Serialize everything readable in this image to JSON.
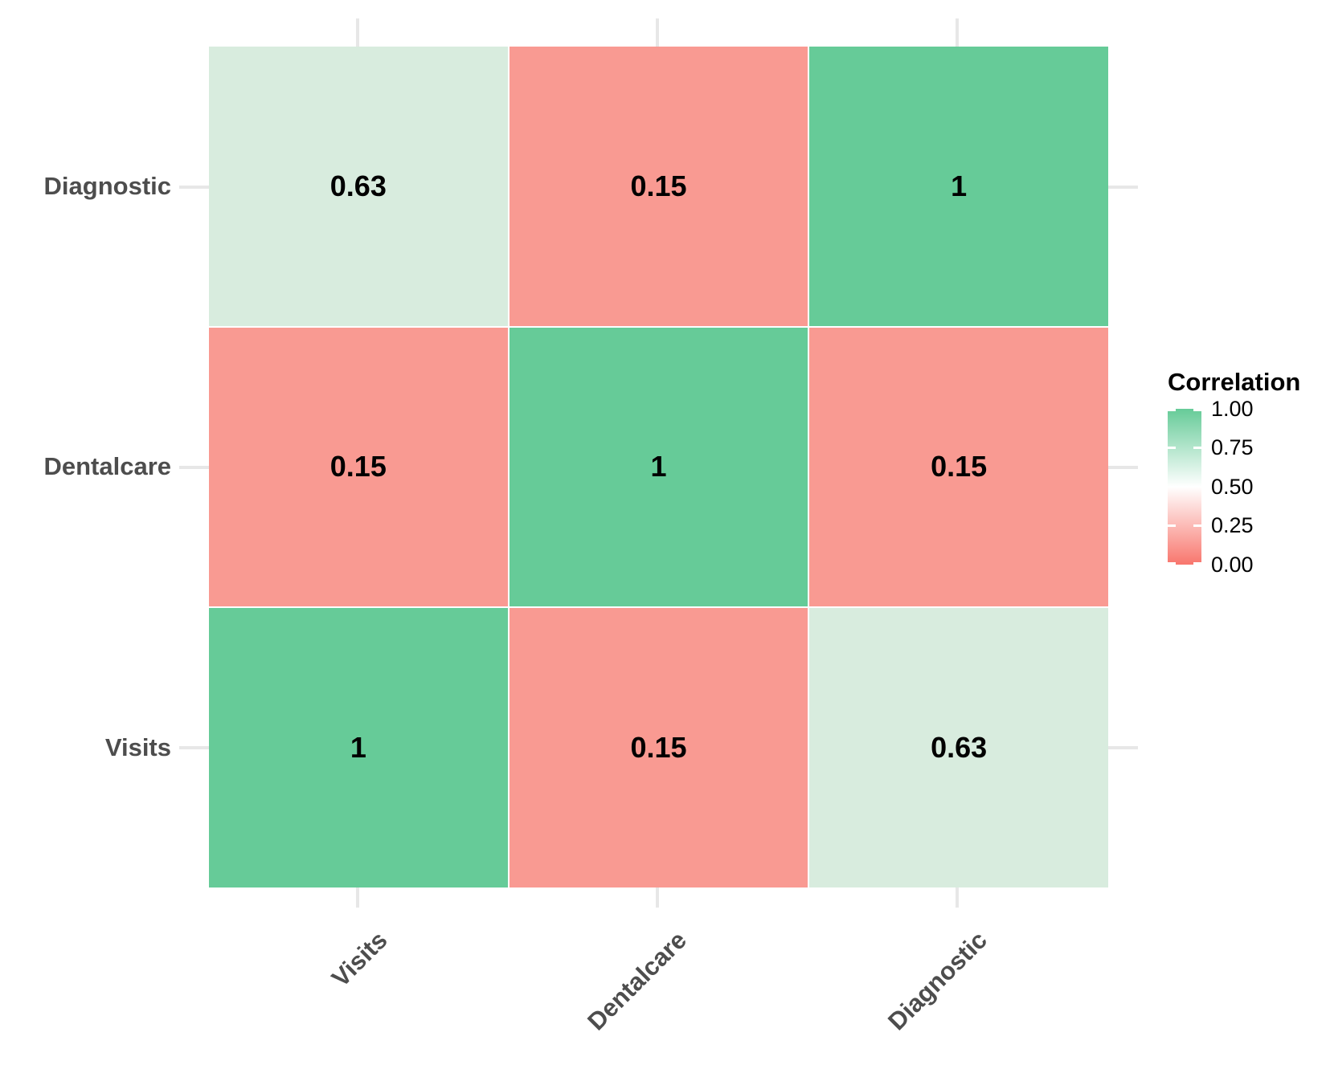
{
  "chart_data": {
    "type": "heatmap",
    "title": "",
    "x_categories": [
      "Visits",
      "Dentalcare",
      "Diagnostic"
    ],
    "y_categories_top_to_bottom": [
      "Diagnostic",
      "Dentalcare",
      "Visits"
    ],
    "matrix_rows_top_to_bottom": [
      [
        0.63,
        0.15,
        1
      ],
      [
        0.15,
        1,
        0.15
      ],
      [
        1,
        0.15,
        0.63
      ]
    ],
    "cells": [
      {
        "row": "Diagnostic",
        "col": "Visits",
        "value": "0.63",
        "color": "#d8ecde"
      },
      {
        "row": "Diagnostic",
        "col": "Dentalcare",
        "value": "0.15",
        "color": "#f99a92"
      },
      {
        "row": "Diagnostic",
        "col": "Diagnostic",
        "value": "1",
        "color": "#66cb98"
      },
      {
        "row": "Dentalcare",
        "col": "Visits",
        "value": "0.15",
        "color": "#f99a92"
      },
      {
        "row": "Dentalcare",
        "col": "Dentalcare",
        "value": "1",
        "color": "#66cb98"
      },
      {
        "row": "Dentalcare",
        "col": "Diagnostic",
        "value": "0.15",
        "color": "#f99a92"
      },
      {
        "row": "Visits",
        "col": "Visits",
        "value": "1",
        "color": "#66cb98"
      },
      {
        "row": "Visits",
        "col": "Dentalcare",
        "value": "0.15",
        "color": "#f99a92"
      },
      {
        "row": "Visits",
        "col": "Diagnostic",
        "value": "0.63",
        "color": "#d8ecde"
      }
    ],
    "legend": {
      "title": "Correlation",
      "position": "right",
      "orientation": "vertical",
      "range": [
        0.0,
        1.0
      ],
      "ticks": [
        "1.00",
        "0.75",
        "0.50",
        "0.25",
        "0.00"
      ],
      "high_color": "#66cb98",
      "mid_color": "#ffffff",
      "low_color": "#f8766d"
    },
    "layout_hints": {
      "grid": "stub gridlines outside tile area",
      "gridline_color": "#e7e7e7",
      "axis_text_color": "#4d4d4d",
      "x_label_angle_deg": 45
    }
  }
}
